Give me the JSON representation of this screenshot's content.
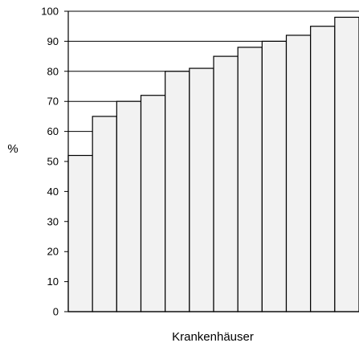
{
  "chart_data": {
    "type": "bar",
    "categories": [
      "",
      "",
      "",
      "",
      "",
      "",
      "",
      "",
      "",
      "",
      "",
      ""
    ],
    "values": [
      52,
      65,
      70,
      72,
      80,
      81,
      85,
      88,
      90,
      92,
      95,
      98
    ],
    "xlabel": "Krankenhäuser",
    "ylabel": "%",
    "ylim": [
      0,
      100
    ],
    "yticks": [
      "0",
      "10",
      "20",
      "30",
      "40",
      "50",
      "60",
      "70",
      "80",
      "90",
      "100"
    ],
    "grid": true,
    "colors": {
      "bar_fill": "#f2f2f2",
      "bar_stroke": "#000000"
    }
  }
}
